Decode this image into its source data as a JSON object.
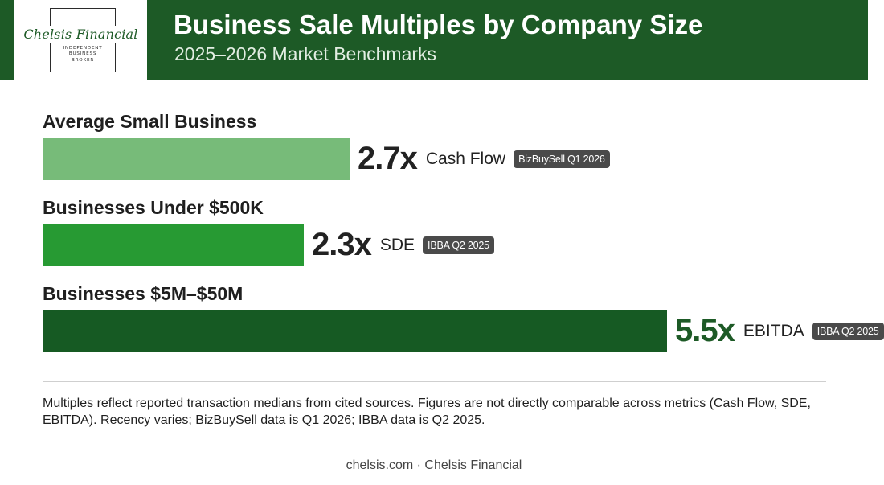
{
  "header": {
    "title": "Business Sale Multiples by Company Size",
    "subtitle": "2025–2026 Market Benchmarks"
  },
  "logo": {
    "name": "Chelsis Financial",
    "tagline_lines": [
      "INDEPENDENT",
      "BUSINESS",
      "BROKER"
    ]
  },
  "colors": {
    "header_bg": "#1d5a26",
    "bar_light": "#77bb79",
    "bar_medium": "#279a33",
    "bar_dark": "#165a23",
    "accent_value": "#1d5a26",
    "badge_bg": "#4a4a4a"
  },
  "chart_data": {
    "type": "bar",
    "orientation": "horizontal",
    "title": "Business Sale Multiples by Company Size",
    "subtitle": "2025–2026 Market Benchmarks",
    "categories": [
      "Average Small Business",
      "Businesses Under $500K",
      "Businesses $5M–$50M"
    ],
    "values": [
      2.7,
      2.3,
      5.5
    ],
    "value_labels": [
      "2.7x",
      "2.3x",
      "5.5x"
    ],
    "metrics": [
      "Cash Flow",
      "SDE",
      "EBITDA"
    ],
    "sources": [
      "BizBuySell Q1 2026",
      "IBBA Q2 2025",
      "IBBA Q2 2025"
    ],
    "bar_colors": [
      "#77bb79",
      "#279a33",
      "#165a23"
    ],
    "xlim": [
      0,
      6.9
    ]
  },
  "footnote": "Multiples reflect reported transaction medians from cited sources. Figures are not directly comparable across metrics (Cash Flow, SDE, EBITDA). Recency varies; BizBuySell data is Q1 2026; IBBA data is Q2 2025.",
  "footer": "chelsis.com · Chelsis Financial"
}
